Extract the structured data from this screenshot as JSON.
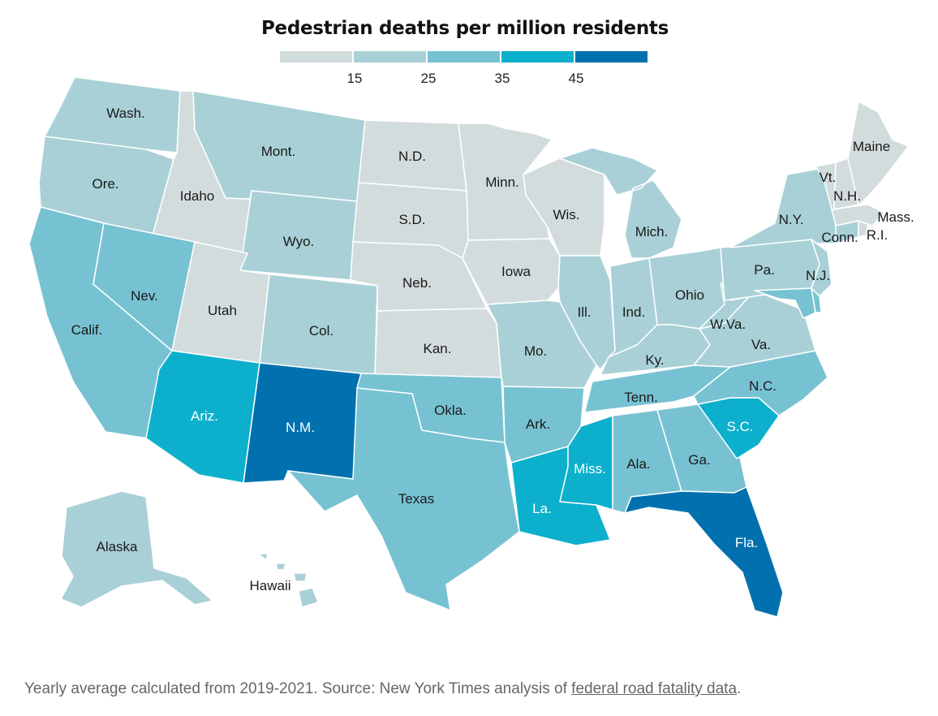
{
  "title": "Pedestrian deaths per million residents",
  "legend": {
    "bins": [
      {
        "color": "#d3dcdc"
      },
      {
        "color": "#a9d0d7"
      },
      {
        "color": "#77c2d2"
      },
      {
        "color": "#0db0cc"
      },
      {
        "color": "#0071ae"
      }
    ],
    "ticks": [
      "15",
      "25",
      "35",
      "45"
    ]
  },
  "states": [
    {
      "id": "wa",
      "label": "Wash.",
      "bin": 1
    },
    {
      "id": "or",
      "label": "Ore.",
      "bin": 1
    },
    {
      "id": "ca",
      "label": "Calif.",
      "bin": 2
    },
    {
      "id": "id",
      "label": "Idaho",
      "bin": 0
    },
    {
      "id": "nv",
      "label": "Nev.",
      "bin": 2
    },
    {
      "id": "mt",
      "label": "Mont.",
      "bin": 1
    },
    {
      "id": "wy",
      "label": "Wyo.",
      "bin": 1
    },
    {
      "id": "ut",
      "label": "Utah",
      "bin": 0
    },
    {
      "id": "co",
      "label": "Col.",
      "bin": 1
    },
    {
      "id": "az",
      "label": "Ariz.",
      "bin": 3
    },
    {
      "id": "nm",
      "label": "N.M.",
      "bin": 4
    },
    {
      "id": "nd",
      "label": "N.D.",
      "bin": 0
    },
    {
      "id": "sd",
      "label": "S.D.",
      "bin": 0
    },
    {
      "id": "ne",
      "label": "Neb.",
      "bin": 0
    },
    {
      "id": "ks",
      "label": "Kan.",
      "bin": 0
    },
    {
      "id": "ok",
      "label": "Okla.",
      "bin": 2
    },
    {
      "id": "tx",
      "label": "Texas",
      "bin": 2
    },
    {
      "id": "mn",
      "label": "Minn.",
      "bin": 0
    },
    {
      "id": "ia",
      "label": "Iowa",
      "bin": 0
    },
    {
      "id": "mo",
      "label": "Mo.",
      "bin": 1
    },
    {
      "id": "ar",
      "label": "Ark.",
      "bin": 2
    },
    {
      "id": "la",
      "label": "La.",
      "bin": 3
    },
    {
      "id": "wi",
      "label": "Wis.",
      "bin": 0
    },
    {
      "id": "il",
      "label": "Ill.",
      "bin": 1
    },
    {
      "id": "mi",
      "label": "Mich.",
      "bin": 1
    },
    {
      "id": "in",
      "label": "Ind.",
      "bin": 1
    },
    {
      "id": "oh",
      "label": "Ohio",
      "bin": 1
    },
    {
      "id": "ky",
      "label": "Ky.",
      "bin": 1
    },
    {
      "id": "tn",
      "label": "Tenn.",
      "bin": 2
    },
    {
      "id": "ms",
      "label": "Miss.",
      "bin": 3
    },
    {
      "id": "al",
      "label": "Ala.",
      "bin": 2
    },
    {
      "id": "ga",
      "label": "Ga.",
      "bin": 2
    },
    {
      "id": "fl",
      "label": "Fla.",
      "bin": 4
    },
    {
      "id": "sc",
      "label": "S.C.",
      "bin": 3
    },
    {
      "id": "nc",
      "label": "N.C.",
      "bin": 2
    },
    {
      "id": "va",
      "label": "Va.",
      "bin": 1
    },
    {
      "id": "wv",
      "label": "W.Va.",
      "bin": 1
    },
    {
      "id": "pa",
      "label": "Pa.",
      "bin": 1
    },
    {
      "id": "ny",
      "label": "N.Y.",
      "bin": 1
    },
    {
      "id": "nj",
      "label": "N.J.",
      "bin": 1
    },
    {
      "id": "md",
      "label": "",
      "bin": 2
    },
    {
      "id": "de",
      "label": "",
      "bin": 2
    },
    {
      "id": "ct",
      "label": "Conn.",
      "bin": 1
    },
    {
      "id": "ri",
      "label": "R.I.",
      "bin": 0
    },
    {
      "id": "ma",
      "label": "Mass.",
      "bin": 0
    },
    {
      "id": "vt",
      "label": "Vt.",
      "bin": 0
    },
    {
      "id": "nh",
      "label": "N.H.",
      "bin": 0
    },
    {
      "id": "me",
      "label": "Maine",
      "bin": 0
    },
    {
      "id": "ak",
      "label": "Alaska",
      "bin": 1
    },
    {
      "id": "hi",
      "label": "Hawaii",
      "bin": 1
    }
  ],
  "footer": {
    "text": "Yearly average calculated from 2019-2021. Source: New York Times analysis of ",
    "link": "federal road fatality data",
    "end": "."
  }
}
